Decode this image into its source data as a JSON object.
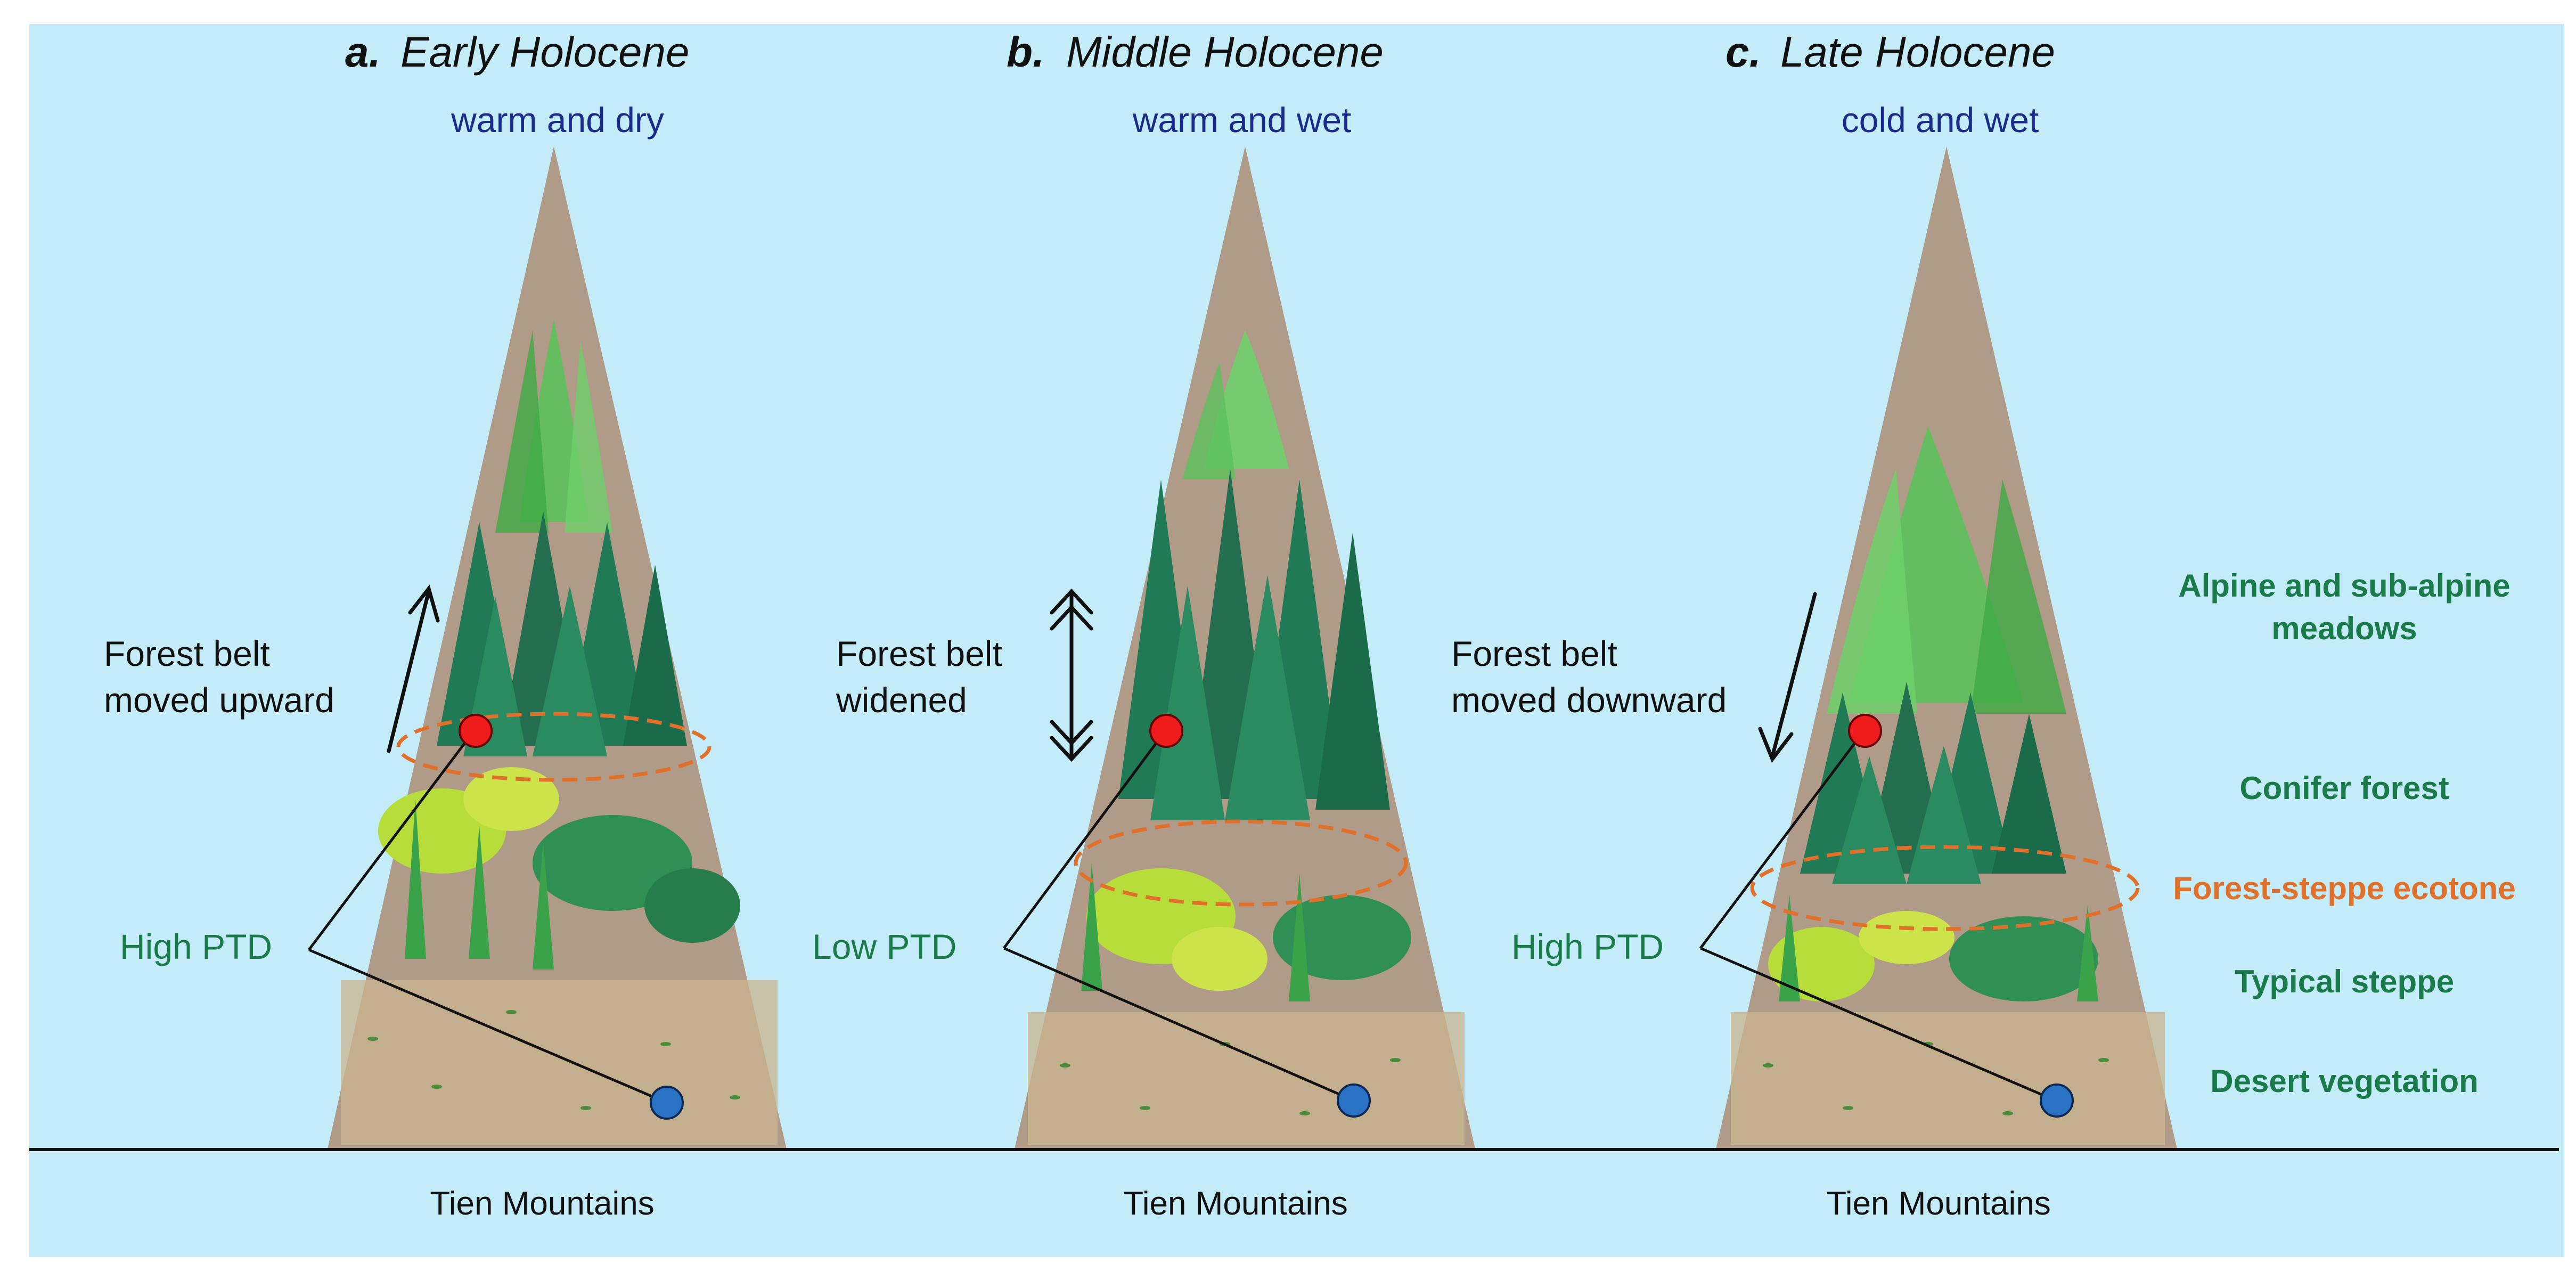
{
  "panels": [
    {
      "letter": "a.",
      "title": "Early Holocene",
      "climate": "warm and dry",
      "belt_line1": "Forest belt",
      "belt_line2": "moved upward",
      "ptd": "High PTD",
      "mountain": "Tien Mountains",
      "arrow": "up"
    },
    {
      "letter": "b.",
      "title": "Middle Holocene",
      "climate": "warm and wet",
      "belt_line1": "Forest belt",
      "belt_line2": "widened",
      "ptd": "Low PTD",
      "mountain": "Tien Mountains",
      "arrow": "double"
    },
    {
      "letter": "c.",
      "title": "Late Holocene",
      "climate": "cold and wet",
      "belt_line1": "Forest belt",
      "belt_line2": "moved downward",
      "ptd": "High PTD",
      "mountain": "Tien Mountains",
      "arrow": "down"
    }
  ],
  "legend": {
    "alpine_line1": "Alpine and sub-alpine",
    "alpine_line2": "meadows",
    "conifer": "Conifer forest",
    "ecotone": "Forest-steppe ecotone",
    "steppe": "Typical steppe",
    "desert": "Desert vegetation"
  },
  "colors": {
    "sky": "#c3ecf8",
    "mountain": "#b09a88",
    "conifer": "#1f7a55",
    "meadow": "#5cc25c",
    "shrub": "#b6dd3a",
    "ecotone_ring": "#e0702a",
    "label_green": "#1a7a4a",
    "climate_blue": "#1a2b8c",
    "high_point": "#ee1c1c",
    "low_point": "#2a72c4"
  }
}
